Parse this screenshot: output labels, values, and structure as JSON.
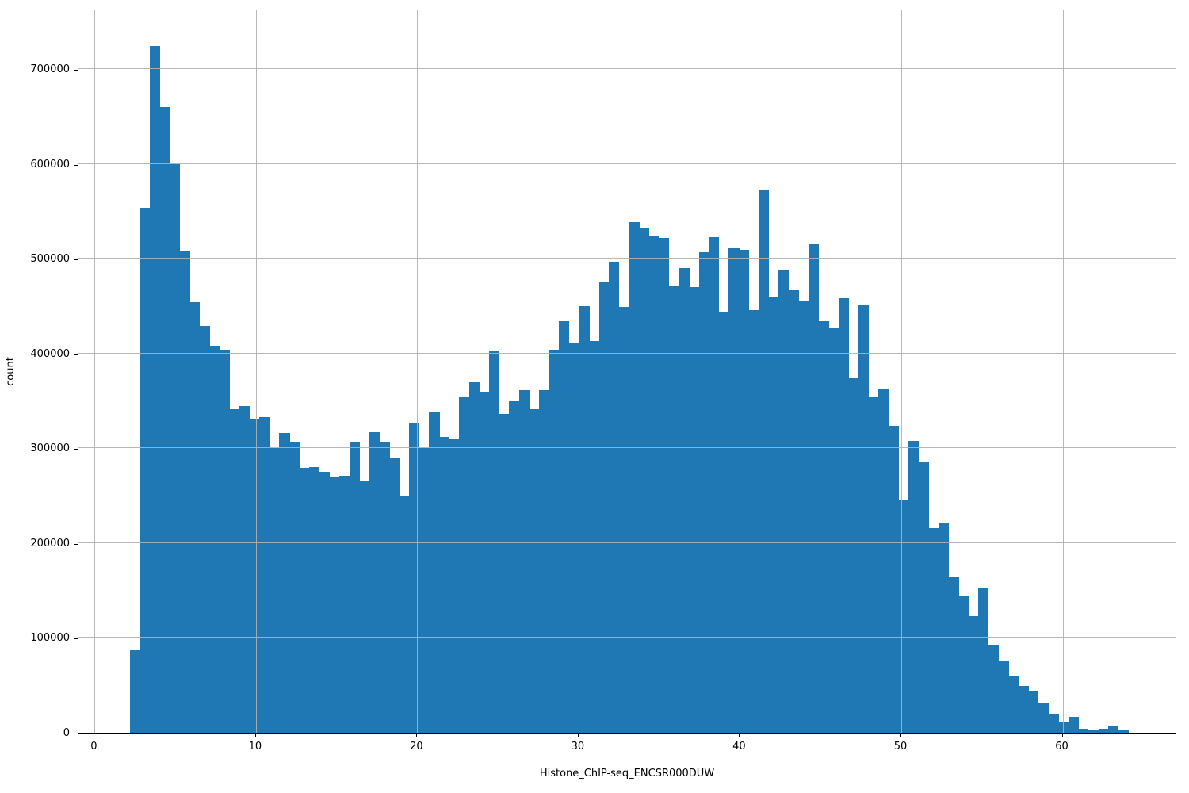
{
  "figure": {
    "xlabel": "Histone_ChIP-seq_ENCSR000DUW",
    "ylabel": "count",
    "bar_color": "#1f77b4",
    "grid_color": "#b0b0b0",
    "spine_color": "#000000",
    "background_color": "#ffffff"
  },
  "chart_data": {
    "type": "bar",
    "subtype": "histogram",
    "title": "",
    "xlabel": "Histone_ChIP-seq_ENCSR000DUW",
    "ylabel": "count",
    "xlim": [
      -1.0,
      67.1
    ],
    "ylim": [
      0,
      763600
    ],
    "x_ticks": [
      0,
      10,
      20,
      30,
      40,
      50,
      60
    ],
    "y_ticks": [
      0,
      100000,
      200000,
      300000,
      400000,
      500000,
      600000,
      700000
    ],
    "grid": true,
    "grid_above_bars": true,
    "legend": "none",
    "bin_start": 2.17,
    "bin_width": 0.619,
    "counts": [
      87000,
      554000,
      724000,
      660000,
      600000,
      508000,
      454000,
      429000,
      408000,
      404000,
      341000,
      345000,
      331000,
      333000,
      300000,
      316000,
      306000,
      279000,
      280000,
      275000,
      270000,
      271000,
      307000,
      265000,
      317000,
      306000,
      289000,
      250000,
      327000,
      300000,
      339000,
      312000,
      310000,
      355000,
      370000,
      360000,
      402000,
      336000,
      350000,
      361000,
      341000,
      361000,
      404000,
      434000,
      411000,
      450000,
      413000,
      476000,
      496000,
      449000,
      539000,
      532000,
      524000,
      522000,
      471000,
      490000,
      470000,
      507000,
      523000,
      443000,
      511000,
      509000,
      446000,
      572000,
      460000,
      488000,
      467000,
      456000,
      515000,
      434000,
      427000,
      458000,
      374000,
      451000,
      355000,
      362000,
      324000,
      246000,
      308000,
      286000,
      216000,
      222000,
      165000,
      145000,
      123000,
      152000,
      93000,
      75000,
      60000,
      49000,
      44000,
      31000,
      20000,
      11000,
      17000,
      4200,
      2200,
      4200,
      7000,
      2200
    ]
  }
}
